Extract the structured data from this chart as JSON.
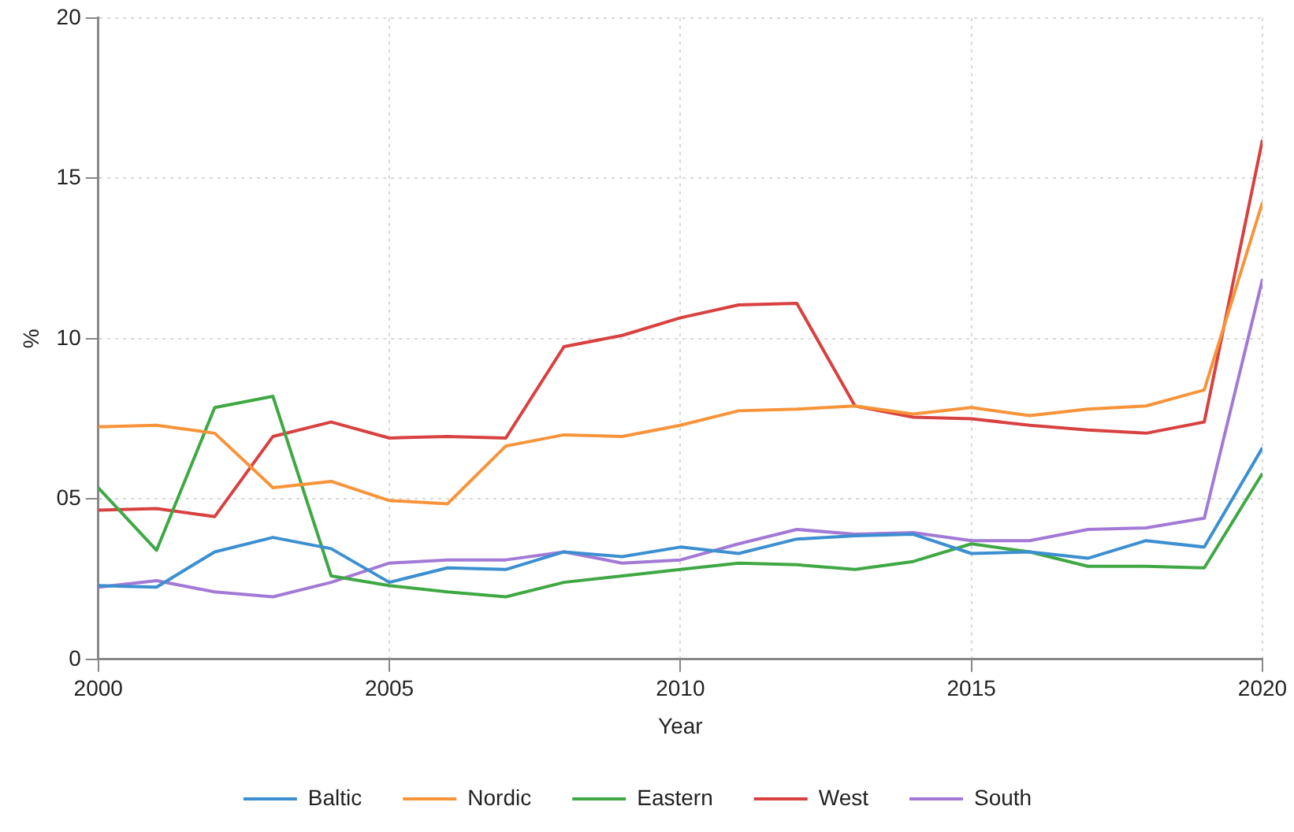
{
  "chart_data": {
    "type": "line",
    "xlabel": "Year",
    "ylabel": "%",
    "x": [
      2000,
      2001,
      2002,
      2003,
      2004,
      2005,
      2006,
      2007,
      2008,
      2009,
      2010,
      2011,
      2012,
      2013,
      2014,
      2015,
      2016,
      2017,
      2018,
      2019,
      2020
    ],
    "xlim": [
      2000,
      2020
    ],
    "xticks": [
      2000,
      2005,
      2010,
      2015,
      2020
    ],
    "ylim": [
      0,
      20
    ],
    "yticks": [
      0,
      {
        "value": 5,
        "label": "05"
      },
      10,
      15,
      20
    ],
    "grid": true,
    "legend": "bottom",
    "marker": "none",
    "line_style": "solid",
    "series": [
      {
        "name": "Baltic",
        "color": "#3c8fd0",
        "values": [
          2.3,
          2.25,
          3.35,
          3.8,
          3.45,
          2.4,
          2.85,
          2.8,
          3.35,
          3.2,
          3.5,
          3.3,
          3.75,
          3.85,
          3.9,
          3.3,
          3.35,
          3.15,
          3.7,
          3.5,
          6.6
        ]
      },
      {
        "name": "Nordic",
        "color": "#f7943a",
        "values": [
          7.25,
          7.3,
          7.05,
          5.35,
          5.55,
          4.95,
          4.85,
          6.65,
          7.0,
          6.95,
          7.3,
          7.75,
          7.8,
          7.9,
          7.65,
          7.85,
          7.6,
          7.8,
          7.9,
          8.4,
          14.25
        ]
      },
      {
        "name": "Eastern",
        "color": "#3fa844",
        "values": [
          5.35,
          3.4,
          7.85,
          8.2,
          2.6,
          2.3,
          2.1,
          1.95,
          2.4,
          2.6,
          2.8,
          3.0,
          2.95,
          2.8,
          3.05,
          3.6,
          3.35,
          2.9,
          2.9,
          2.85,
          5.8
        ]
      },
      {
        "name": "West",
        "color": "#d94040",
        "values": [
          4.65,
          4.7,
          4.45,
          6.95,
          7.4,
          6.9,
          6.95,
          6.9,
          9.75,
          10.1,
          10.65,
          11.05,
          11.1,
          7.9,
          7.55,
          7.5,
          7.3,
          7.15,
          7.05,
          7.4,
          16.2
        ]
      },
      {
        "name": "South",
        "color": "#a27ad6",
        "values": [
          2.25,
          2.45,
          2.1,
          1.95,
          2.4,
          3.0,
          3.1,
          3.1,
          3.35,
          3.0,
          3.1,
          3.6,
          4.05,
          3.9,
          3.95,
          3.7,
          3.7,
          4.05,
          4.1,
          4.4,
          11.85
        ]
      }
    ]
  }
}
